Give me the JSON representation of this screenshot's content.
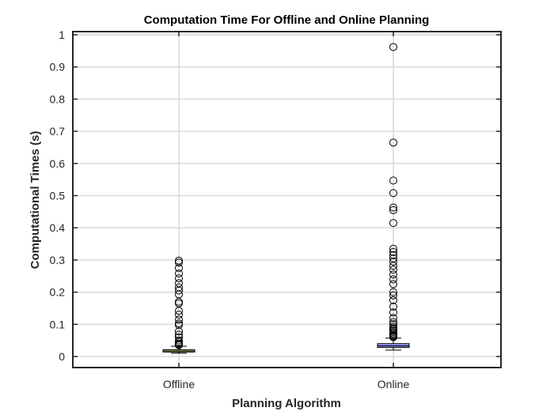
{
  "chart_data": {
    "type": "box",
    "title": "Computation Time For Offline and Online Planning",
    "xlabel": "Planning Algorithm",
    "ylabel": "Computational Times (s)",
    "ylim": [
      0,
      1
    ],
    "yticks": [
      "0",
      "0.1",
      "0.2",
      "0.3",
      "0.4",
      "0.5",
      "0.6",
      "0.7",
      "0.8",
      "0.9",
      "1"
    ],
    "grid": true,
    "categories": [
      "Offline",
      "Online"
    ],
    "series": [
      {
        "category": "Offline",
        "color": "#ffff99",
        "whisker_low": 0.01,
        "q1": 0.014,
        "median": 0.017,
        "q3": 0.021,
        "whisker_high": 0.032,
        "outliers": [
          0.298,
          0.292,
          0.275,
          0.258,
          0.243,
          0.228,
          0.215,
          0.205,
          0.193,
          0.17,
          0.165,
          0.142,
          0.13,
          0.115,
          0.103,
          0.098,
          0.078,
          0.068,
          0.06,
          0.05,
          0.045,
          0.04,
          0.037,
          0.035
        ]
      },
      {
        "category": "Online",
        "color": "#9999ff",
        "whisker_low": 0.02,
        "q1": 0.028,
        "median": 0.033,
        "q3": 0.04,
        "whisker_high": 0.057,
        "outliers": [
          0.962,
          0.665,
          0.547,
          0.508,
          0.463,
          0.455,
          0.415,
          0.335,
          0.325,
          0.315,
          0.305,
          0.295,
          0.282,
          0.27,
          0.255,
          0.24,
          0.225,
          0.2,
          0.19,
          0.175,
          0.155,
          0.137,
          0.12,
          0.107,
          0.1,
          0.093,
          0.088,
          0.084,
          0.08,
          0.076,
          0.072,
          0.068,
          0.065,
          0.062,
          0.06
        ]
      }
    ]
  }
}
